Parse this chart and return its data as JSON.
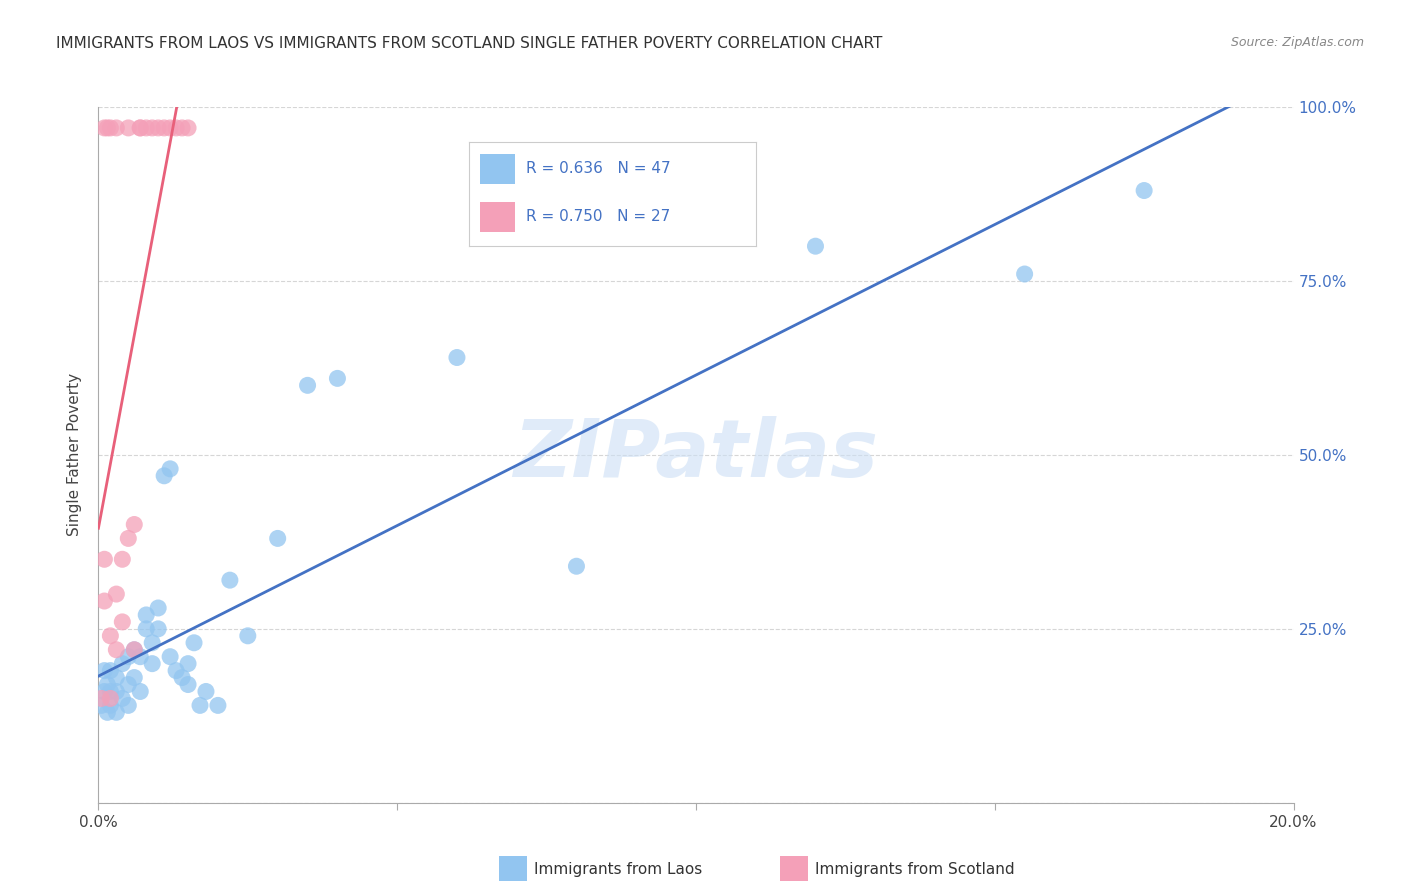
{
  "title": "IMMIGRANTS FROM LAOS VS IMMIGRANTS FROM SCOTLAND SINGLE FATHER POVERTY CORRELATION CHART",
  "source": "Source: ZipAtlas.com",
  "ylabel": "Single Father Poverty",
  "legend_laos": "Immigrants from Laos",
  "legend_scotland": "Immigrants from Scotland",
  "R_laos": 0.636,
  "N_laos": 47,
  "R_scotland": 0.75,
  "N_scotland": 27,
  "color_laos": "#92C5F0",
  "color_scotland": "#F4A0B8",
  "color_laos_line": "#4472C4",
  "color_scotland_line": "#E8607A",
  "xlim": [
    0.0,
    0.2
  ],
  "ylim": [
    0.0,
    1.0
  ],
  "background_color": "#FFFFFF",
  "watermark": "ZIPatlas",
  "laos_x": [
    0.0005,
    0.001,
    0.001,
    0.0015,
    0.0015,
    0.002,
    0.002,
    0.002,
    0.003,
    0.003,
    0.003,
    0.004,
    0.004,
    0.005,
    0.005,
    0.005,
    0.006,
    0.006,
    0.007,
    0.007,
    0.008,
    0.008,
    0.009,
    0.009,
    0.01,
    0.01,
    0.011,
    0.012,
    0.012,
    0.013,
    0.014,
    0.015,
    0.015,
    0.016,
    0.017,
    0.018,
    0.02,
    0.022,
    0.025,
    0.03,
    0.035,
    0.04,
    0.06,
    0.08,
    0.12,
    0.155,
    0.175
  ],
  "laos_y": [
    0.14,
    0.16,
    0.19,
    0.13,
    0.17,
    0.14,
    0.16,
    0.19,
    0.13,
    0.16,
    0.18,
    0.15,
    0.2,
    0.14,
    0.17,
    0.21,
    0.18,
    0.22,
    0.16,
    0.21,
    0.25,
    0.27,
    0.2,
    0.23,
    0.25,
    0.28,
    0.47,
    0.48,
    0.21,
    0.19,
    0.18,
    0.17,
    0.2,
    0.23,
    0.14,
    0.16,
    0.14,
    0.32,
    0.24,
    0.38,
    0.6,
    0.61,
    0.64,
    0.34,
    0.8,
    0.76,
    0.88
  ],
  "scotland_x": [
    0.0005,
    0.001,
    0.001,
    0.001,
    0.0015,
    0.002,
    0.002,
    0.002,
    0.003,
    0.003,
    0.003,
    0.004,
    0.004,
    0.005,
    0.005,
    0.006,
    0.006,
    0.007,
    0.007,
    0.008,
    0.009,
    0.01,
    0.011,
    0.012,
    0.013,
    0.014,
    0.015
  ],
  "scotland_y": [
    0.15,
    0.29,
    0.35,
    0.97,
    0.97,
    0.15,
    0.24,
    0.97,
    0.22,
    0.3,
    0.97,
    0.26,
    0.35,
    0.38,
    0.97,
    0.22,
    0.4,
    0.97,
    0.97,
    0.97,
    0.97,
    0.97,
    0.97,
    0.97,
    0.97,
    0.97,
    0.97
  ]
}
